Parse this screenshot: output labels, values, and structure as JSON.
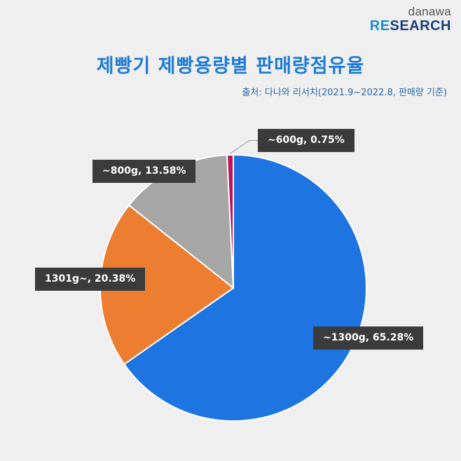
{
  "logo": {
    "line1": "danawa",
    "line2_prefix": "RE",
    "line2_rest": "SEARCH"
  },
  "title": "제빵기 제빵용량별 판매량점유율",
  "source": "출처: 다나와 리서치(2021.9~2022.8, 판매량 기준)",
  "chart_data": {
    "type": "pie",
    "title": "제빵기 제빵용량별 판매량점유율",
    "slices": [
      {
        "category": "~1300g",
        "value": 65.28,
        "label": "~1300g, 65.28%",
        "color": "#1e74e0"
      },
      {
        "category": "1301g~",
        "value": 20.38,
        "label": "1301g~, 20.38%",
        "color": "#ed7d31"
      },
      {
        "category": "~800g",
        "value": 13.58,
        "label": "~800g, 13.58%",
        "color": "#a6a6a6"
      },
      {
        "category": "~600g",
        "value": 0.75,
        "label": "~600g, 0.75%",
        "color": "#c0125a"
      }
    ],
    "legend": "none"
  }
}
